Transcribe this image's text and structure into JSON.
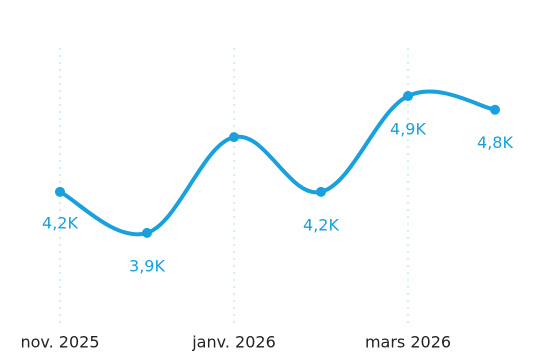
{
  "chart_data": {
    "type": "line",
    "x": [
      "2025-11",
      "2025-12",
      "2026-01",
      "2026-02",
      "2026-03",
      "2026-04"
    ],
    "series": [
      {
        "values": [
          4.2,
          3.9,
          4.6,
          4.2,
          4.9,
          4.8
        ],
        "data_labels": [
          "4,2K",
          "3,9K",
          "",
          "4,2K",
          "4,9K",
          "4,8K"
        ]
      }
    ],
    "tick_labels": [
      {
        "x": "2025-11",
        "label": "nov. 2025"
      },
      {
        "x": "2026-01",
        "label": "janv. 2026"
      },
      {
        "x": "2026-03",
        "label": "mars 2026"
      }
    ],
    "ylim": [
      3.3,
      5.2
    ],
    "grid": {
      "x": true,
      "y": false
    },
    "colors": {
      "series": "#1aa0dc",
      "data_label": "#1aa0dc",
      "grid": "#bfe3f2",
      "tick_label": "#222222"
    }
  }
}
